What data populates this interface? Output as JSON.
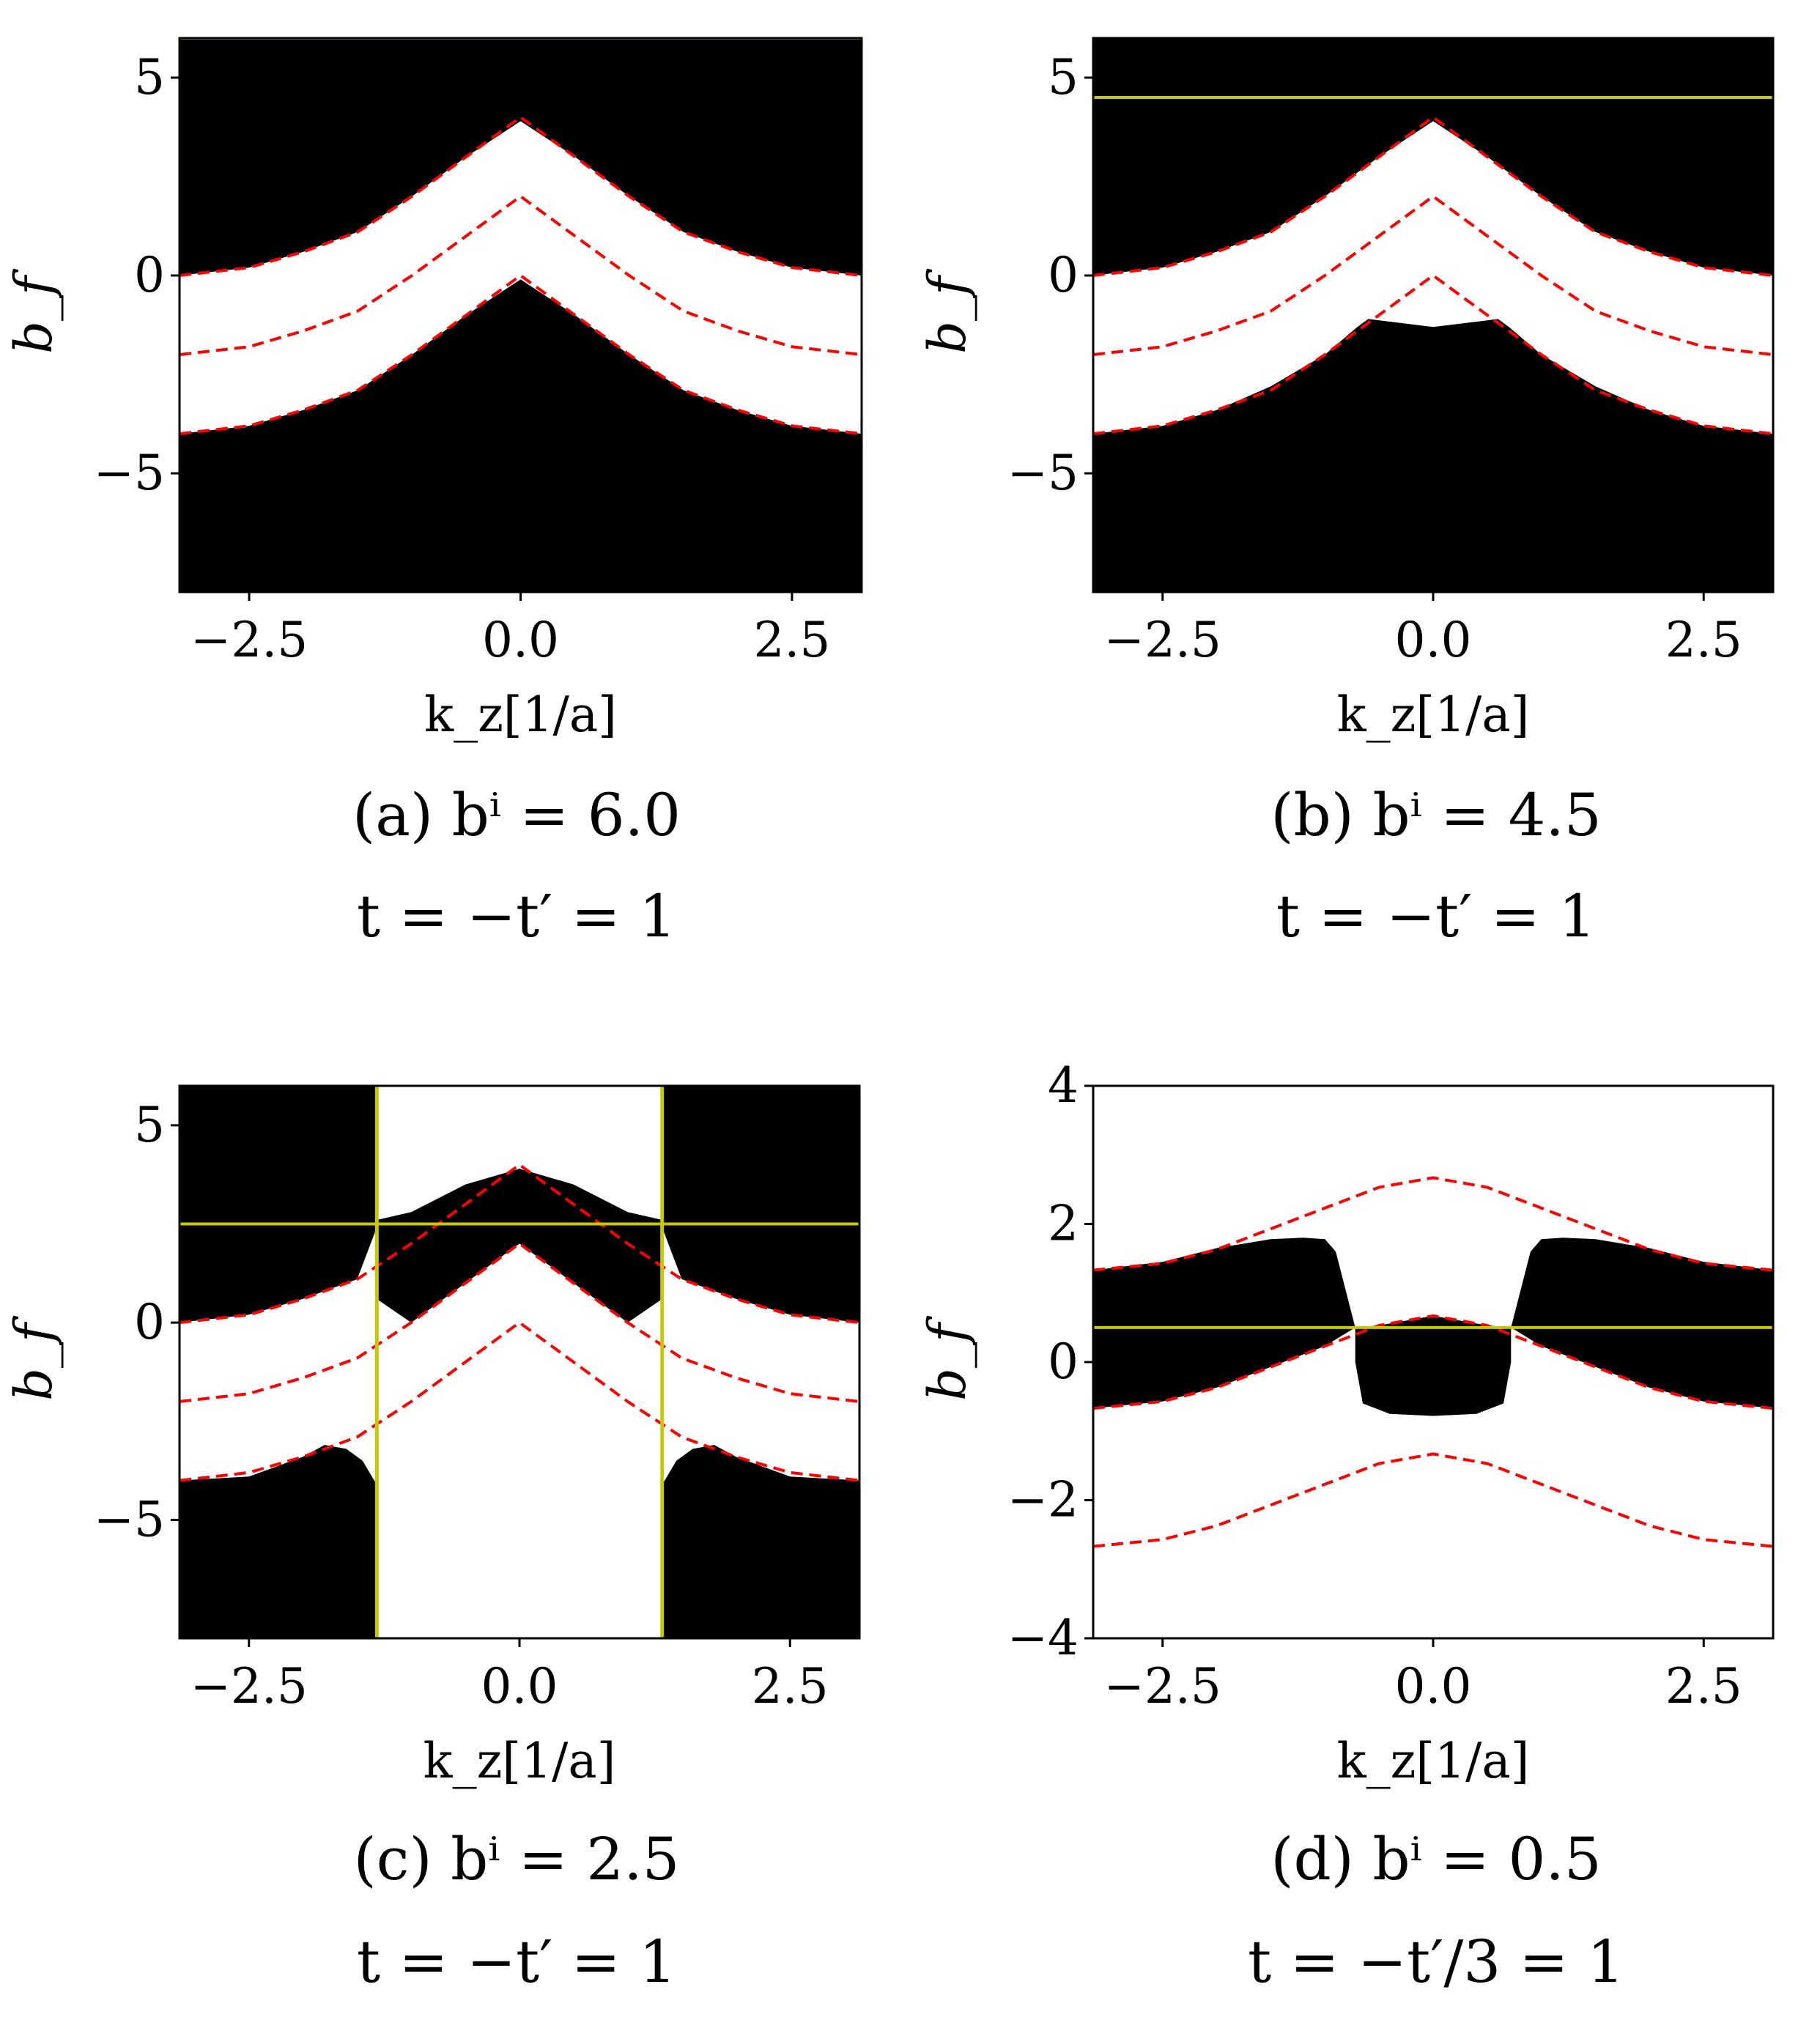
{
  "colors": {
    "band": "#000000",
    "background": "#ffffff",
    "guide": "#ff0000",
    "marker": "#c8c800"
  },
  "chart_data": [
    {
      "type": "heatmap",
      "panel": "a",
      "caption_line1": "(a) bⁱ = 6.0",
      "caption_line2": "t = −t′ = 1",
      "xlabel": "k_z[1/a]",
      "ylabel": "b_f",
      "xlim": [
        -3.1416,
        3.1416
      ],
      "ylim": [
        -8,
        6
      ],
      "xticks": [
        -2.5,
        0.0,
        2.5
      ],
      "xtick_labels": [
        "−2.5",
        "0.0",
        "2.5"
      ],
      "yticks": [
        5,
        0,
        -5
      ],
      "ytick_labels": [
        "5",
        "0",
        "−5"
      ],
      "guide_curves": [
        {
          "x": [
            -3.14,
            -2.5,
            -2.0,
            -1.5,
            -1.0,
            -0.5,
            0.0,
            0.5,
            1.0,
            1.5,
            2.0,
            2.5,
            3.14
          ],
          "y": [
            0.0,
            0.2,
            0.6,
            1.1,
            2.0,
            3.0,
            4.0,
            3.0,
            2.0,
            1.1,
            0.6,
            0.2,
            0.0
          ]
        },
        {
          "x": [
            -3.14,
            -2.5,
            -2.0,
            -1.5,
            -1.0,
            -0.5,
            0.0,
            0.5,
            1.0,
            1.5,
            2.0,
            2.5,
            3.14
          ],
          "y": [
            -2.0,
            -1.8,
            -1.4,
            -0.9,
            0.0,
            1.0,
            2.0,
            1.0,
            0.0,
            -0.9,
            -1.4,
            -1.8,
            -2.0
          ]
        },
        {
          "x": [
            -3.14,
            -2.5,
            -2.0,
            -1.5,
            -1.0,
            -0.5,
            0.0,
            0.5,
            1.0,
            1.5,
            2.0,
            2.5,
            3.14
          ],
          "y": [
            -4.0,
            -3.8,
            -3.4,
            -2.9,
            -2.0,
            -1.0,
            0.0,
            -1.0,
            -2.0,
            -2.9,
            -3.4,
            -3.8,
            -4.0
          ]
        }
      ],
      "band_top": {
        "x": [
          -3.14,
          -2.5,
          -2.0,
          -1.5,
          -1.0,
          -0.5,
          0.0,
          0.5,
          1.0,
          1.5,
          2.0,
          2.5,
          3.14
        ],
        "y": [
          0.0,
          0.2,
          0.6,
          1.1,
          2.0,
          3.0,
          3.9,
          3.0,
          2.0,
          1.1,
          0.6,
          0.2,
          0.0
        ]
      },
      "band_bottom": {
        "x": [
          -3.14,
          -2.5,
          -2.0,
          -1.5,
          -1.0,
          -0.5,
          0.0,
          0.5,
          1.0,
          1.5,
          2.0,
          2.5,
          3.14
        ],
        "y": [
          -4.0,
          -3.8,
          -3.4,
          -2.9,
          -2.0,
          -1.0,
          -0.1,
          -1.0,
          -2.0,
          -2.9,
          -3.4,
          -3.8,
          -4.0
        ]
      },
      "hlines": [
        6.0
      ],
      "vlines": []
    },
    {
      "type": "heatmap",
      "panel": "b",
      "caption_line1": "(b) bⁱ = 4.5",
      "caption_line2": "t = −t′ = 1",
      "xlabel": "k_z[1/a]",
      "ylabel": "b_f",
      "xlim": [
        -3.1416,
        3.1416
      ],
      "ylim": [
        -8,
        6
      ],
      "xticks": [
        -2.5,
        0.0,
        2.5
      ],
      "xtick_labels": [
        "−2.5",
        "0.0",
        "2.5"
      ],
      "yticks": [
        5,
        0,
        -5
      ],
      "ytick_labels": [
        "5",
        "0",
        "−5"
      ],
      "guide_curves": [
        {
          "x": [
            -3.14,
            -2.5,
            -2.0,
            -1.5,
            -1.0,
            -0.5,
            0.0,
            0.5,
            1.0,
            1.5,
            2.0,
            2.5,
            3.14
          ],
          "y": [
            0.0,
            0.2,
            0.6,
            1.1,
            2.0,
            3.0,
            4.0,
            3.0,
            2.0,
            1.1,
            0.6,
            0.2,
            0.0
          ]
        },
        {
          "x": [
            -3.14,
            -2.5,
            -2.0,
            -1.5,
            -1.0,
            -0.5,
            0.0,
            0.5,
            1.0,
            1.5,
            2.0,
            2.5,
            3.14
          ],
          "y": [
            -2.0,
            -1.8,
            -1.4,
            -0.9,
            0.0,
            1.0,
            2.0,
            1.0,
            0.0,
            -0.9,
            -1.4,
            -1.8,
            -2.0
          ]
        },
        {
          "x": [
            -3.14,
            -2.5,
            -2.0,
            -1.5,
            -1.0,
            -0.5,
            0.0,
            0.5,
            1.0,
            1.5,
            2.0,
            2.5,
            3.14
          ],
          "y": [
            -4.0,
            -3.8,
            -3.4,
            -2.9,
            -2.0,
            -1.0,
            0.0,
            -1.0,
            -2.0,
            -2.9,
            -3.4,
            -3.8,
            -4.0
          ]
        }
      ],
      "band_top": {
        "x": [
          -3.14,
          -2.5,
          -2.0,
          -1.5,
          -1.0,
          -0.5,
          0.0,
          0.5,
          1.0,
          1.5,
          2.0,
          2.5,
          3.14
        ],
        "y": [
          0.0,
          0.2,
          0.6,
          1.1,
          2.0,
          3.0,
          3.9,
          3.0,
          2.0,
          1.1,
          0.6,
          0.2,
          0.0
        ]
      },
      "band_bottom": {
        "x": [
          -3.14,
          -2.5,
          -2.0,
          -1.5,
          -1.0,
          -0.7,
          -0.6,
          0.0,
          0.6,
          0.7,
          1.0,
          1.5,
          2.0,
          2.5,
          3.14
        ],
        "y": [
          -4.0,
          -3.8,
          -3.4,
          -2.8,
          -2.0,
          -1.3,
          -1.1,
          -1.3,
          -1.1,
          -1.3,
          -2.0,
          -2.8,
          -3.4,
          -3.8,
          -4.0
        ]
      },
      "hlines": [
        4.5
      ],
      "vlines": []
    },
    {
      "type": "heatmap",
      "panel": "c",
      "caption_line1": "(c) bⁱ = 2.5",
      "caption_line2": "t = −t′ = 1",
      "xlabel": "k_z[1/a]",
      "ylabel": "b_f",
      "xlim": [
        -3.1416,
        3.1416
      ],
      "ylim": [
        -8,
        6
      ],
      "xticks": [
        -2.5,
        0.0,
        2.5
      ],
      "xtick_labels": [
        "−2.5",
        "0.0",
        "2.5"
      ],
      "yticks": [
        5,
        0,
        -5
      ],
      "ytick_labels": [
        "5",
        "0",
        "−5"
      ],
      "guide_curves": [
        {
          "x": [
            -3.14,
            -2.5,
            -2.0,
            -1.5,
            -1.0,
            -0.5,
            0.0,
            0.5,
            1.0,
            1.5,
            2.0,
            2.5,
            3.14
          ],
          "y": [
            0.0,
            0.2,
            0.6,
            1.1,
            2.0,
            3.0,
            4.0,
            3.0,
            2.0,
            1.1,
            0.6,
            0.2,
            0.0
          ]
        },
        {
          "x": [
            -3.14,
            -2.5,
            -2.0,
            -1.5,
            -1.0,
            -0.5,
            0.0,
            0.5,
            1.0,
            1.5,
            2.0,
            2.5,
            3.14
          ],
          "y": [
            -2.0,
            -1.8,
            -1.4,
            -0.9,
            0.0,
            1.0,
            2.0,
            1.0,
            0.0,
            -0.9,
            -1.4,
            -1.8,
            -2.0
          ]
        },
        {
          "x": [
            -3.14,
            -2.5,
            -2.0,
            -1.5,
            -1.0,
            -0.5,
            0.0,
            0.5,
            1.0,
            1.5,
            2.0,
            2.5,
            3.14
          ],
          "y": [
            -4.0,
            -3.8,
            -3.4,
            -2.9,
            -2.0,
            -1.0,
            0.0,
            -1.0,
            -2.0,
            -2.9,
            -3.4,
            -3.8,
            -4.0
          ]
        }
      ],
      "outer_top_left": {
        "x": [
          -3.14,
          -2.5,
          -2.0,
          -1.5,
          -1.32
        ],
        "y": [
          0.0,
          0.2,
          0.6,
          1.1,
          2.4
        ]
      },
      "outer_bottom_left": {
        "x": [
          -3.14,
          -2.5,
          -2.0,
          -1.8,
          -1.6,
          -1.45,
          -1.32
        ],
        "y": [
          -4.0,
          -3.9,
          -3.4,
          -3.1,
          -3.2,
          -3.5,
          -4.1
        ]
      },
      "center_top": {
        "x": [
          -1.32,
          -1.0,
          -0.5,
          0.0,
          0.5,
          1.0,
          1.32
        ],
        "y": [
          2.6,
          2.8,
          3.5,
          3.9,
          3.5,
          2.8,
          2.6
        ]
      },
      "center_bottom": {
        "x": [
          -1.32,
          -1.0,
          -0.5,
          0.0,
          0.5,
          1.0,
          1.32
        ],
        "y": [
          0.6,
          0.0,
          1.0,
          2.0,
          1.0,
          0.0,
          0.6
        ]
      },
      "hlines": [
        2.5
      ],
      "vlines": [
        -1.318,
        1.318
      ]
    },
    {
      "type": "heatmap",
      "panel": "d",
      "caption_line1": "(d) bⁱ = 0.5",
      "caption_line2": "t = −t′/3 = 1",
      "xlabel": "k_z[1/a]",
      "ylabel": "b_f",
      "xlim": [
        -3.1416,
        3.1416
      ],
      "ylim": [
        -4,
        4
      ],
      "xticks": [
        -2.5,
        0.0,
        2.5
      ],
      "xtick_labels": [
        "−2.5",
        "0.0",
        "2.5"
      ],
      "yticks": [
        4,
        2,
        0,
        -2,
        -4
      ],
      "ytick_labels": [
        "4",
        "2",
        "0",
        "−2",
        "−4"
      ],
      "guide_curves": [
        {
          "x": [
            -3.14,
            -2.5,
            -2.0,
            -1.5,
            -1.0,
            -0.5,
            0.0,
            0.5,
            1.0,
            1.5,
            2.0,
            2.5,
            3.14
          ],
          "y": [
            1.33,
            1.43,
            1.63,
            1.93,
            2.23,
            2.53,
            2.67,
            2.53,
            2.23,
            1.93,
            1.63,
            1.43,
            1.33
          ]
        },
        {
          "x": [
            -3.14,
            -2.5,
            -2.0,
            -1.5,
            -1.0,
            -0.5,
            0.0,
            0.5,
            1.0,
            1.5,
            2.0,
            2.5,
            3.14
          ],
          "y": [
            -0.67,
            -0.57,
            -0.37,
            -0.07,
            0.23,
            0.53,
            0.67,
            0.53,
            0.23,
            -0.07,
            -0.37,
            -0.57,
            -0.67
          ]
        },
        {
          "x": [
            -3.14,
            -2.5,
            -2.0,
            -1.5,
            -1.0,
            -0.5,
            0.0,
            0.5,
            1.0,
            1.5,
            2.0,
            2.5,
            3.14
          ],
          "y": [
            -2.67,
            -2.57,
            -2.37,
            -2.07,
            -1.77,
            -1.47,
            -1.33,
            -1.47,
            -1.77,
            -2.07,
            -2.37,
            -2.57,
            -2.67
          ]
        }
      ],
      "outer_top_left": {
        "x": [
          -3.14,
          -2.5,
          -2.0,
          -1.5,
          -1.2,
          -1.0,
          -0.9,
          -0.72
        ],
        "y": [
          1.33,
          1.45,
          1.65,
          1.78,
          1.8,
          1.78,
          1.6,
          0.5
        ]
      },
      "outer_bottom_left": {
        "x": [
          -3.14,
          -2.5,
          -2.0,
          -1.5,
          -1.0,
          -0.72
        ],
        "y": [
          -0.67,
          -0.57,
          -0.37,
          -0.07,
          0.23,
          0.5
        ]
      },
      "center_top": {
        "x": [
          -0.72,
          -0.5,
          0.0,
          0.5,
          0.72
        ],
        "y": [
          0.5,
          0.53,
          0.67,
          0.53,
          0.5
        ]
      },
      "center_bottom": {
        "x": [
          -0.72,
          -0.65,
          -0.4,
          0.0,
          0.4,
          0.65,
          0.72
        ],
        "y": [
          0.0,
          -0.6,
          -0.75,
          -0.78,
          -0.75,
          -0.6,
          0.0
        ]
      },
      "hlines": [
        0.5
      ],
      "vlines": []
    }
  ]
}
